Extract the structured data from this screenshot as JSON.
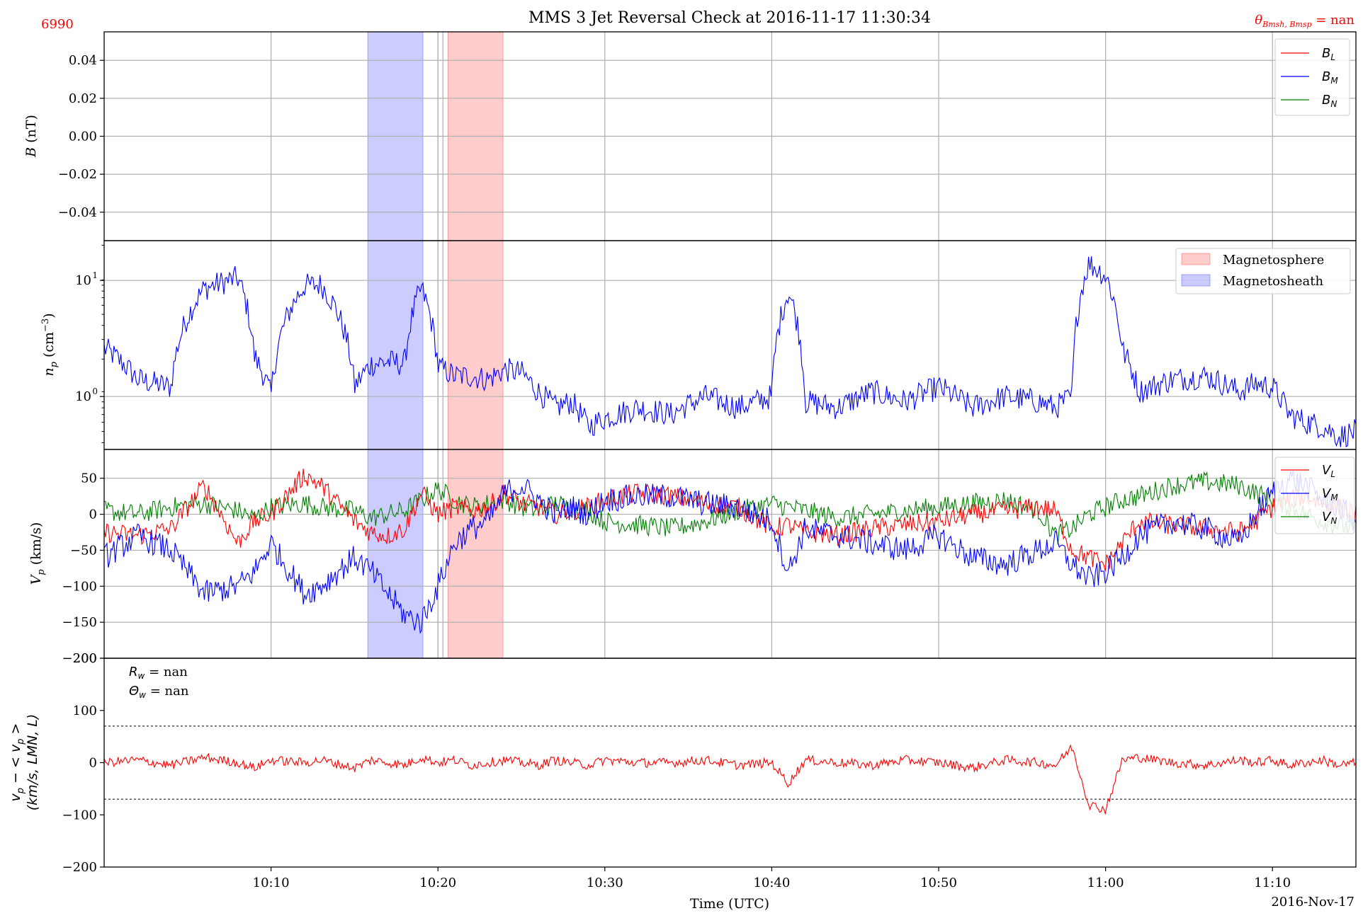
{
  "figure": {
    "title": "MMS 3 Jet Reversal Check at 2016-11-17 11:30:34",
    "event_id": "6990",
    "theta_label": "θ",
    "theta_sub": "Bmsh, Bmsp",
    "theta_value": " = nan",
    "xlabel": "Time (UTC)",
    "date_label": "2016-Nov-17",
    "x_ticks": [
      "10:10",
      "10:20",
      "10:30",
      "10:40",
      "10:50",
      "11:00",
      "11:10"
    ],
    "x_tick_minutes": [
      10,
      20,
      30,
      40,
      50,
      60,
      70
    ],
    "x_range_minutes": [
      0,
      75
    ]
  },
  "shading": {
    "magnetosheath": {
      "label": "Magnetosheath",
      "start_min": 15.8,
      "end_min": 19.1,
      "color": "#0000ff"
    },
    "magnetosphere": {
      "label": "Magnetosphere",
      "start_min": 20.6,
      "end_min": 23.9,
      "color": "#ff0000"
    },
    "event_lines_min": [
      20.0,
      20.3
    ]
  },
  "colors": {
    "L": "#ff0000",
    "M": "#0000ff",
    "N": "#008000",
    "density": "#0000ff",
    "diff": "#ff0000",
    "accent": "#ff0000"
  },
  "panel_B": {
    "ylabel": "B",
    "yunit": " (nT)",
    "ylim": [
      -0.055,
      0.055
    ],
    "yticks": [
      0.04,
      0.02,
      0.0,
      -0.02,
      -0.04
    ],
    "ytick_labels": [
      "0.04",
      "0.02",
      "0.00",
      "−0.02",
      "−0.04"
    ],
    "legend": [
      "B",
      "B",
      "B"
    ],
    "legend_subs": [
      "L",
      "M",
      "N"
    ]
  },
  "panel_n": {
    "ylabel": "n",
    "ylabel_sub": "p",
    "yunit": " (cm",
    "yunit_sup": "−3",
    "yunit_close": ")",
    "scale": "log",
    "ylim": [
      0.35,
      22
    ],
    "ytick_values": [
      10,
      1
    ],
    "ytick_bases": [
      "10",
      "10"
    ],
    "ytick_exps": [
      "1",
      "0"
    ]
  },
  "panel_V": {
    "ylabel": "V",
    "ylabel_sub": "p",
    "yunit": " (km/s)",
    "ylim": [
      -200,
      90
    ],
    "yticks": [
      50,
      0,
      -50,
      -100,
      -150,
      -200
    ],
    "ytick_labels": [
      "50",
      "0",
      "−50",
      "−100",
      "−150",
      "−200"
    ],
    "legend": [
      "V",
      "V",
      "V"
    ],
    "legend_subs": [
      "L",
      "M",
      "N"
    ]
  },
  "panel_diff": {
    "ylabel_line1": "v",
    "ylabel_line1_sub": "p",
    "ylabel_line1_rest": " − < v",
    "ylabel_line1_rest_sub": "p",
    "ylabel_line1_end": " >",
    "ylabel_line2": "(km/s, LMN, L)",
    "ylim": [
      -200,
      200
    ],
    "yticks": [
      200,
      100,
      0,
      -100,
      -200
    ],
    "ytick_labels": [
      "200",
      "100",
      "0",
      "−100",
      "−200"
    ],
    "threshold": 70,
    "annot_R_sym": "R",
    "annot_R_sub": "w",
    "annot_R_val": " = nan",
    "annot_T_sym": "Θ",
    "annot_T_sub": "w",
    "annot_T_val": " = nan"
  },
  "chart_data": {
    "type": "line",
    "title": "MMS 3 Jet Reversal Check at 2016-11-17 11:30:34",
    "xlabel": "Time (UTC)",
    "x_minutes_after_10_00": [
      0,
      2,
      4,
      6,
      8,
      9,
      10,
      12,
      13,
      15,
      16,
      17,
      18,
      19,
      20,
      21,
      22,
      23,
      24,
      25,
      26,
      27,
      28,
      29,
      30,
      32,
      34,
      36,
      38,
      40,
      41,
      42,
      44,
      46,
      48,
      50,
      52,
      54,
      56,
      57,
      58,
      59,
      60,
      61,
      62,
      64,
      66,
      68,
      69,
      70,
      71,
      72,
      73,
      74,
      75
    ],
    "series": [
      {
        "name": "n_p",
        "unit": "cm^-3",
        "values": [
          2.6,
          1.4,
          1.2,
          8.5,
          10.5,
          2.2,
          1.0,
          9.0,
          9.2,
          1.2,
          1.9,
          2.0,
          1.9,
          8.5,
          1.8,
          1.5,
          1.5,
          1.4,
          1.7,
          1.6,
          1.1,
          0.8,
          0.9,
          0.55,
          0.65,
          0.8,
          0.7,
          1.0,
          0.8,
          1.0,
          8.0,
          0.9,
          0.8,
          1.1,
          0.9,
          1.2,
          0.8,
          1.0,
          0.9,
          0.8,
          1.0,
          14.0,
          11.0,
          2.5,
          1.1,
          1.4,
          1.5,
          1.1,
          1.3,
          1.2,
          0.7,
          0.6,
          0.55,
          0.45,
          0.5
        ]
      },
      {
        "name": "V_L",
        "unit": "km/s",
        "values": [
          -25,
          -30,
          -20,
          40,
          -40,
          -10,
          0,
          55,
          40,
          -10,
          -25,
          -30,
          -20,
          30,
          0,
          10,
          5,
          10,
          30,
          15,
          10,
          0,
          5,
          10,
          20,
          30,
          25,
          15,
          10,
          -20,
          -15,
          -25,
          -30,
          -20,
          -15,
          -10,
          0,
          5,
          10,
          5,
          -50,
          -60,
          -70,
          -40,
          -10,
          -15,
          -20,
          -25,
          -10,
          10,
          20,
          25,
          15,
          10,
          0
        ]
      },
      {
        "name": "V_M",
        "unit": "km/s",
        "values": [
          -60,
          -30,
          -50,
          -110,
          -100,
          -80,
          -40,
          -110,
          -100,
          -60,
          -80,
          -110,
          -140,
          -150,
          -100,
          -40,
          -20,
          -10,
          30,
          40,
          20,
          0,
          10,
          0,
          20,
          25,
          25,
          15,
          10,
          -10,
          -80,
          -20,
          -30,
          -40,
          -50,
          -30,
          -60,
          -70,
          -50,
          -40,
          -70,
          -90,
          -80,
          -60,
          -30,
          -10,
          -20,
          -40,
          0,
          30,
          50,
          40,
          20,
          10,
          -10
        ]
      },
      {
        "name": "V_N",
        "unit": "km/s",
        "values": [
          5,
          0,
          10,
          15,
          5,
          -5,
          10,
          15,
          10,
          5,
          -5,
          0,
          5,
          20,
          35,
          20,
          10,
          15,
          20,
          10,
          5,
          15,
          10,
          5,
          -10,
          -15,
          -20,
          -10,
          5,
          15,
          10,
          5,
          -5,
          0,
          5,
          10,
          15,
          20,
          5,
          -30,
          -20,
          0,
          10,
          20,
          25,
          40,
          45,
          40,
          30,
          20,
          10,
          0,
          -10,
          -15,
          -20
        ]
      },
      {
        "name": "v_p - <v_p>",
        "unit": "km/s",
        "values": [
          0,
          5,
          -5,
          10,
          0,
          -10,
          5,
          0,
          5,
          -10,
          5,
          0,
          -5,
          10,
          0,
          5,
          -5,
          0,
          5,
          0,
          -5,
          5,
          0,
          -5,
          5,
          0,
          0,
          5,
          -5,
          0,
          -40,
          5,
          0,
          -5,
          5,
          0,
          -10,
          5,
          0,
          -5,
          30,
          -80,
          -90,
          5,
          10,
          0,
          -5,
          5,
          0,
          5,
          -5,
          0,
          5,
          -5,
          0
        ]
      }
    ],
    "B_series": [
      {
        "name": "B_L",
        "values": []
      },
      {
        "name": "B_M",
        "values": []
      },
      {
        "name": "B_N",
        "values": []
      }
    ],
    "grid": true,
    "legend_placement": "top-right"
  }
}
